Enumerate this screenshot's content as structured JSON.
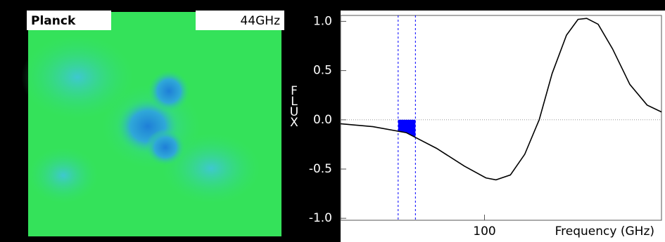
{
  "panel": {
    "title": "Planck",
    "frequency": "44GHz"
  },
  "chart_data": {
    "type": "line",
    "x_label": "Frequency (GHz)",
    "y_label": "FLUX",
    "x": [
      0,
      22.5,
      45.6,
      66.7,
      86,
      101,
      108,
      118,
      128,
      138,
      147,
      157,
      165,
      171,
      179,
      189,
      201,
      213,
      223
    ],
    "values": [
      -0.04,
      -0.07,
      -0.13,
      -0.29,
      -0.47,
      -0.59,
      -0.61,
      -0.56,
      -0.35,
      0.0,
      0.47,
      0.86,
      1.02,
      1.03,
      0.97,
      0.72,
      0.36,
      0.15,
      0.08
    ],
    "color": "#000000",
    "band": [
      40,
      52
    ],
    "band_color": "#0000ff",
    "xlim": [
      0,
      223
    ],
    "xticks": [
      100
    ],
    "ylim": [
      -1.02,
      1.06
    ],
    "yticks": [
      {
        "value": 1,
        "label": "1.0"
      },
      0.5,
      {
        "value": 0,
        "label": "0.0"
      },
      -0.5,
      {
        "value": -1,
        "label": "-1.0"
      }
    ],
    "zero_line": true
  }
}
